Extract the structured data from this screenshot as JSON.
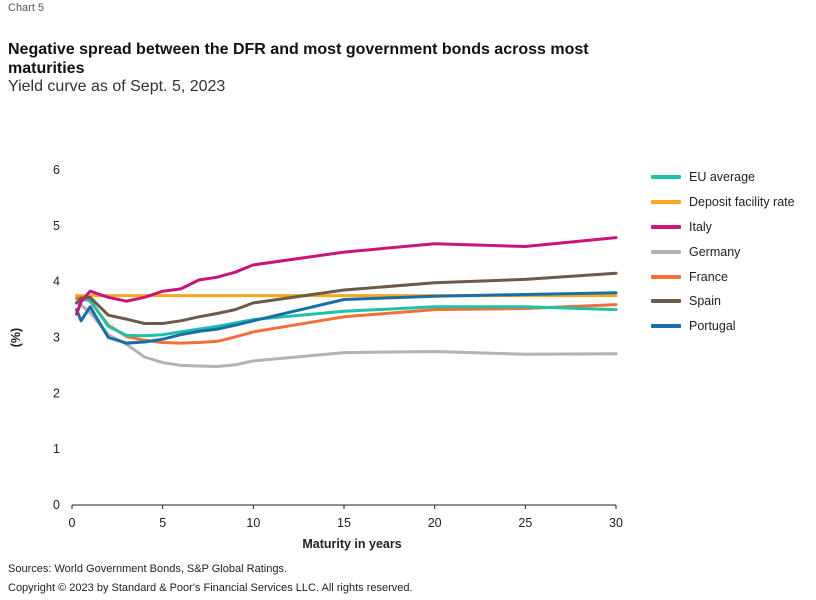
{
  "header": {
    "chart_label": "Chart 5",
    "title": "Negative spread between the DFR and most government bonds across most maturities",
    "subtitle": "Yield curve as of Sept. 5, 2023"
  },
  "footer": {
    "sources": "Sources: World Government Bonds, S&P Global Ratings.",
    "copyright": "Copyright © 2023 by Standard & Poor's Financial Services LLC. All rights reserved."
  },
  "chart_data": {
    "type": "line",
    "title": "Negative spread between the DFR and most government bonds across most maturities",
    "subtitle": "Yield curve as of Sept. 5, 2023",
    "xlabel": "Maturity in years",
    "ylabel": "(%)",
    "xlim": [
      0,
      30
    ],
    "ylim": [
      0,
      6
    ],
    "xticks": [
      0,
      5,
      10,
      15,
      20,
      25,
      30
    ],
    "yticks": [
      0,
      1,
      2,
      3,
      4,
      5,
      6
    ],
    "grid": false,
    "legend_position": "right",
    "series": [
      {
        "name": "EU average",
        "color": "#1fc1a8",
        "x": [
          0.25,
          0.5,
          1,
          2,
          3,
          4,
          5,
          6,
          7,
          8,
          9,
          10,
          15,
          20,
          25,
          30
        ],
        "y": [
          3.62,
          3.68,
          3.67,
          3.2,
          3.04,
          3.03,
          3.05,
          3.1,
          3.15,
          3.2,
          3.26,
          3.32,
          3.47,
          3.55,
          3.55,
          3.5
        ]
      },
      {
        "name": "Deposit facility rate",
        "color": "#f5a91d",
        "x": [
          0.25,
          30
        ],
        "y": [
          3.75,
          3.75
        ]
      },
      {
        "name": "Italy",
        "color": "#c8157a",
        "x": [
          0.25,
          0.5,
          1,
          2,
          3,
          4,
          5,
          6,
          7,
          8,
          9,
          10,
          15,
          20,
          25,
          30
        ],
        "y": [
          3.42,
          3.64,
          3.83,
          3.72,
          3.65,
          3.72,
          3.83,
          3.87,
          4.03,
          4.08,
          4.17,
          4.3,
          4.53,
          4.68,
          4.63,
          4.79
        ]
      },
      {
        "name": "Germany",
        "color": "#b3b3b3",
        "x": [
          0.25,
          0.5,
          1,
          2,
          3,
          4,
          5,
          6,
          7,
          8,
          9,
          10,
          15,
          20,
          25,
          30
        ],
        "y": [
          3.62,
          3.58,
          3.45,
          3.05,
          2.88,
          2.65,
          2.55,
          2.5,
          2.49,
          2.48,
          2.51,
          2.58,
          2.73,
          2.75,
          2.7,
          2.71
        ]
      },
      {
        "name": "France",
        "color": "#f26f38",
        "x": [
          0.25,
          0.5,
          1,
          2,
          3,
          4,
          5,
          6,
          7,
          8,
          9,
          10,
          15,
          20,
          25,
          30
        ],
        "y": [
          3.7,
          3.72,
          3.65,
          3.22,
          3.02,
          2.95,
          2.91,
          2.9,
          2.91,
          2.93,
          3.01,
          3.1,
          3.37,
          3.5,
          3.52,
          3.59
        ]
      },
      {
        "name": "Spain",
        "color": "#6c5a4a",
        "x": [
          0.25,
          0.5,
          1,
          2,
          3,
          4,
          5,
          6,
          7,
          8,
          9,
          10,
          15,
          20,
          25,
          30
        ],
        "y": [
          3.62,
          3.7,
          3.72,
          3.4,
          3.33,
          3.25,
          3.25,
          3.3,
          3.37,
          3.43,
          3.5,
          3.62,
          3.85,
          3.98,
          4.04,
          4.15
        ]
      },
      {
        "name": "Portugal",
        "color": "#1a6ea8",
        "x": [
          0.25,
          0.5,
          1,
          2,
          3,
          4,
          5,
          6,
          7,
          8,
          9,
          10,
          15,
          20,
          25,
          30
        ],
        "y": [
          3.5,
          3.3,
          3.55,
          3.0,
          2.9,
          2.92,
          2.97,
          3.05,
          3.11,
          3.15,
          3.22,
          3.3,
          3.68,
          3.74,
          3.77,
          3.8
        ]
      }
    ]
  }
}
